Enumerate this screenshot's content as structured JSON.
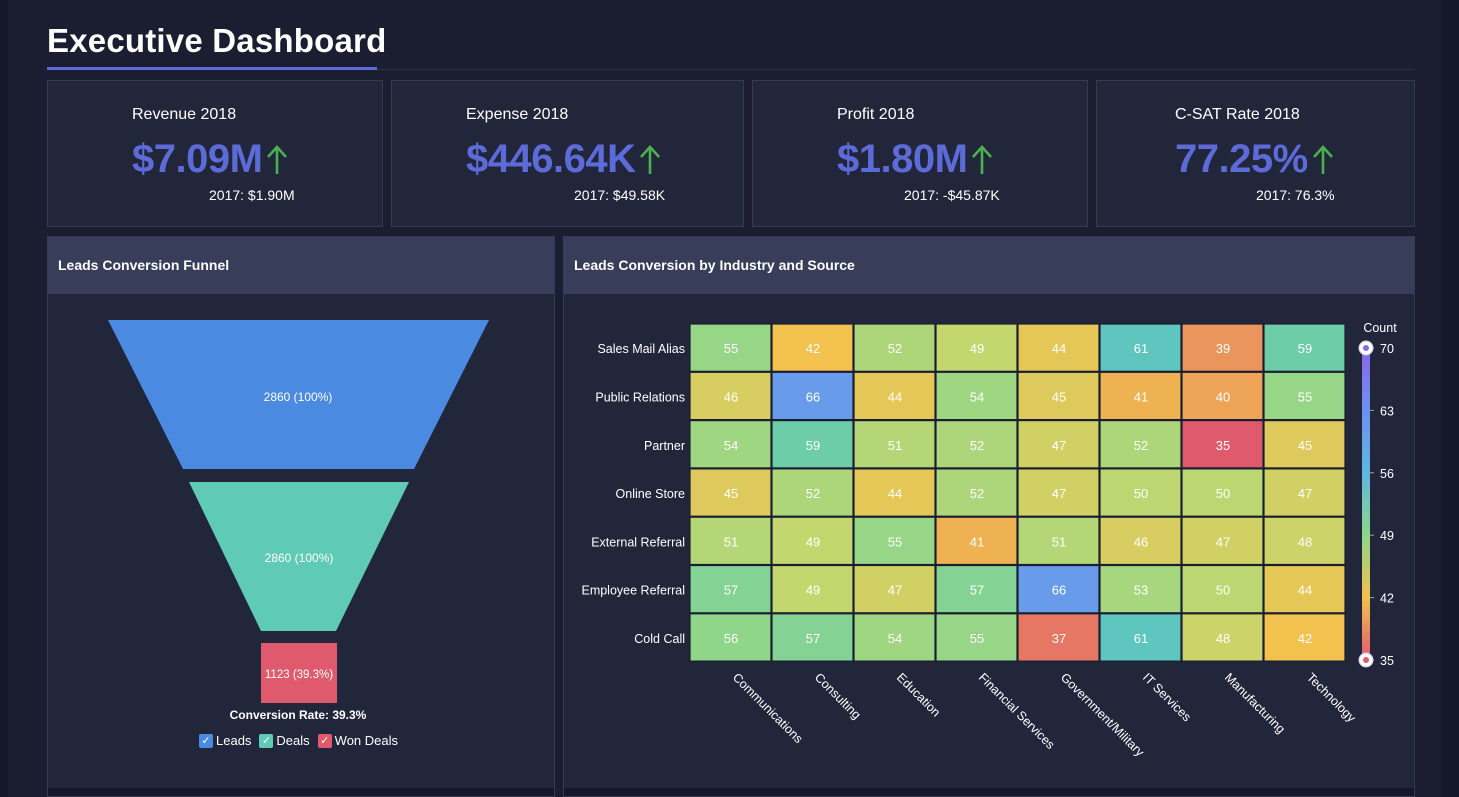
{
  "header": {
    "title": "Executive Dashboard"
  },
  "kpis": [
    {
      "label": "Revenue 2018",
      "value": "$7.09M",
      "previous": "2017: $1.90M",
      "trend": "up"
    },
    {
      "label": "Expense 2018",
      "value": "$446.64K",
      "previous": "2017: $49.58K",
      "trend": "up"
    },
    {
      "label": "Profit 2018",
      "value": "$1.80M",
      "previous": "2017: -$45.87K",
      "trend": "up"
    },
    {
      "label": "C-SAT Rate 2018",
      "value": "77.25%",
      "previous": "2017: 76.3%",
      "trend": "up"
    }
  ],
  "colors": {
    "accent": "#5d6bd9",
    "trend_up": "#4caf50",
    "leads": "#4a8ae0",
    "deals": "#5fcab5",
    "won_deals": "#e05a6d"
  },
  "funnel": {
    "title": "Leads Conversion Funnel",
    "stages": [
      {
        "name": "Leads",
        "label": "2860 (100%)",
        "value": 2860
      },
      {
        "name": "Deals",
        "label": "2860 (100%)",
        "value": 2860
      },
      {
        "name": "Won Deals",
        "label": "1123 (39.3%)",
        "value": 1123
      }
    ],
    "conversion_rate": "Conversion Rate: 39.3%",
    "legend": [
      "Leads",
      "Deals",
      "Won Deals"
    ]
  },
  "heatmap": {
    "title": "Leads Conversion by Industry and Source"
  },
  "chart_data": {
    "type": "heatmap",
    "title": "Leads Conversion by Industry and Source",
    "legend_title": "Count",
    "y_categories": [
      "Sales Mail Alias",
      "Public Relations",
      "Partner",
      "Online Store",
      "External Referral",
      "Employee Referral",
      "Cold Call"
    ],
    "x_categories": [
      "Communications",
      "Consulting",
      "Education",
      "Financial Services",
      "Government/Military",
      "IT Services",
      "Manufacturing",
      "Technology"
    ],
    "values": [
      [
        55,
        42,
        52,
        49,
        44,
        61,
        39,
        59
      ],
      [
        46,
        66,
        44,
        54,
        45,
        41,
        40,
        55
      ],
      [
        54,
        59,
        51,
        52,
        47,
        52,
        35,
        45
      ],
      [
        45,
        52,
        44,
        52,
        47,
        50,
        50,
        47
      ],
      [
        51,
        49,
        55,
        41,
        51,
        46,
        47,
        48
      ],
      [
        57,
        49,
        47,
        57,
        66,
        53,
        50,
        44
      ],
      [
        56,
        57,
        54,
        55,
        37,
        61,
        48,
        42
      ]
    ],
    "color_range": [
      35,
      70
    ],
    "color_ticks": [
      70,
      63,
      56,
      49,
      42,
      35
    ]
  }
}
